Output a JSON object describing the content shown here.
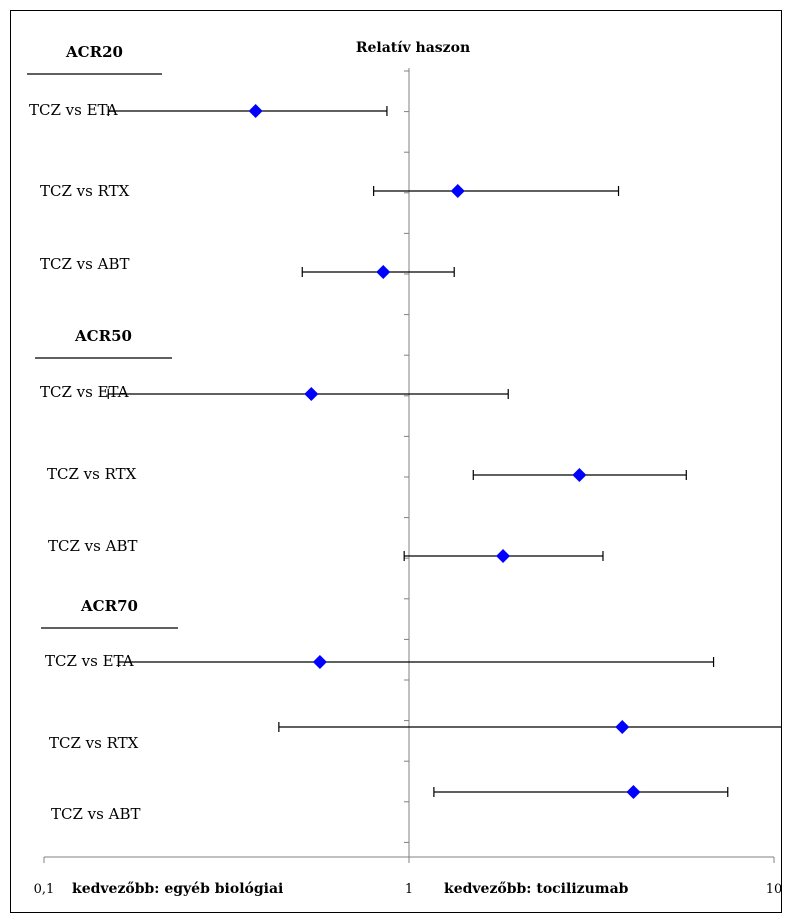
{
  "chart_data": {
    "type": "scatter",
    "title": "Relatív haszon",
    "x_scale": "log",
    "xlim": [
      0.1,
      10
    ],
    "reference_line": 1,
    "x_ticks": [
      "0,1",
      "1",
      "10"
    ],
    "x_tick_values": [
      0.1,
      1,
      10
    ],
    "left_favour_label": "kedvezőbb: egyéb biológiai",
    "right_favour_label": "kedvezőbb: tocilizumab",
    "marker_color": "#0000ff",
    "line_color": "#000000",
    "groups": [
      {
        "name": "ACR20",
        "rows": [
          {
            "label": "TCZ vs ETA",
            "estimate": 0.38,
            "lower": 0.15,
            "upper": 0.87
          },
          {
            "label": "TCZ vs RTX",
            "estimate": 1.36,
            "lower": 0.8,
            "upper": 3.75
          },
          {
            "label": "TCZ vs ABT",
            "estimate": 0.85,
            "lower": 0.51,
            "upper": 1.33
          }
        ]
      },
      {
        "name": "ACR50",
        "rows": [
          {
            "label": "TCZ vs ETA",
            "estimate": 0.54,
            "lower": 0.15,
            "upper": 1.87
          },
          {
            "label": "TCZ vs RTX",
            "estimate": 2.93,
            "lower": 1.5,
            "upper": 5.75
          },
          {
            "label": "TCZ vs ABT",
            "estimate": 1.81,
            "lower": 0.97,
            "upper": 3.4
          }
        ]
      },
      {
        "name": "ACR70",
        "rows": [
          {
            "label": "TCZ vs ETA",
            "estimate": 0.57,
            "lower": 0.16,
            "upper": 6.83
          },
          {
            "label": "TCZ vs RTX",
            "estimate": 3.84,
            "lower": 0.44,
            "upper": 11.3
          },
          {
            "label": "TCZ vs ABT",
            "estimate": 4.12,
            "lower": 1.17,
            "upper": 7.47
          }
        ]
      }
    ]
  }
}
